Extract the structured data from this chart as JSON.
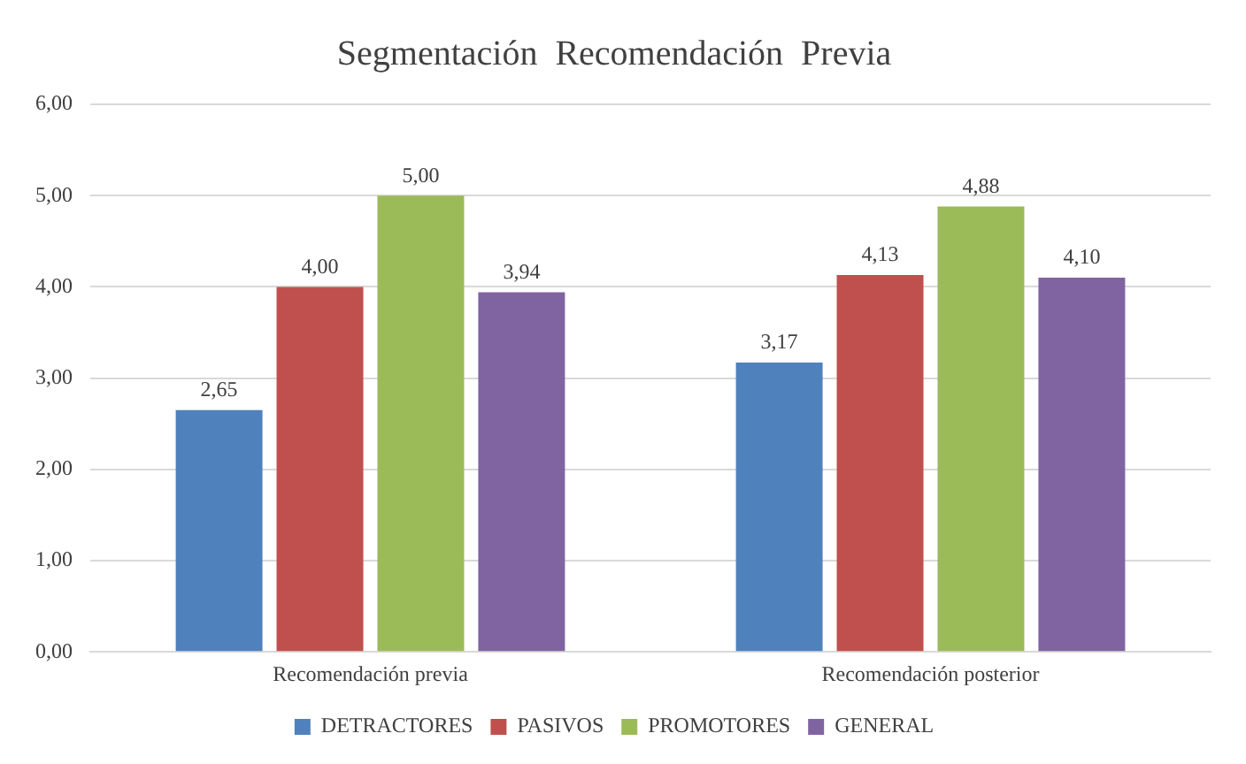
{
  "chart_data": {
    "type": "bar",
    "title": "Segmentación  Recomendación  Previa",
    "categories": [
      "Recomendación previa",
      "Recomendación posterior"
    ],
    "series": [
      {
        "name": "DETRACTORES",
        "color": "#4f81bd",
        "values": [
          2.65,
          3.17
        ],
        "value_labels": [
          "2,65",
          "3,17"
        ]
      },
      {
        "name": "PASIVOS",
        "color": "#c0504d",
        "values": [
          4.0,
          4.13
        ],
        "value_labels": [
          "4,00",
          "4,13"
        ]
      },
      {
        "name": "PROMOTORES",
        "color": "#9bbb59",
        "values": [
          5.0,
          4.88
        ],
        "value_labels": [
          "5,00",
          "4,88"
        ]
      },
      {
        "name": "GENERAL",
        "color": "#8064a2",
        "values": [
          3.94,
          4.1
        ],
        "value_labels": [
          "3,94",
          "4,10"
        ]
      }
    ],
    "ylim": [
      0,
      6
    ],
    "yticks": [
      {
        "value": 0,
        "label": "0,00"
      },
      {
        "value": 1,
        "label": "1,00"
      },
      {
        "value": 2,
        "label": "2,00"
      },
      {
        "value": 3,
        "label": "3,00"
      },
      {
        "value": 4,
        "label": "4,00"
      },
      {
        "value": 5,
        "label": "5,00"
      },
      {
        "value": 6,
        "label": "6,00"
      }
    ],
    "grid": "y",
    "legend": "bottom"
  }
}
